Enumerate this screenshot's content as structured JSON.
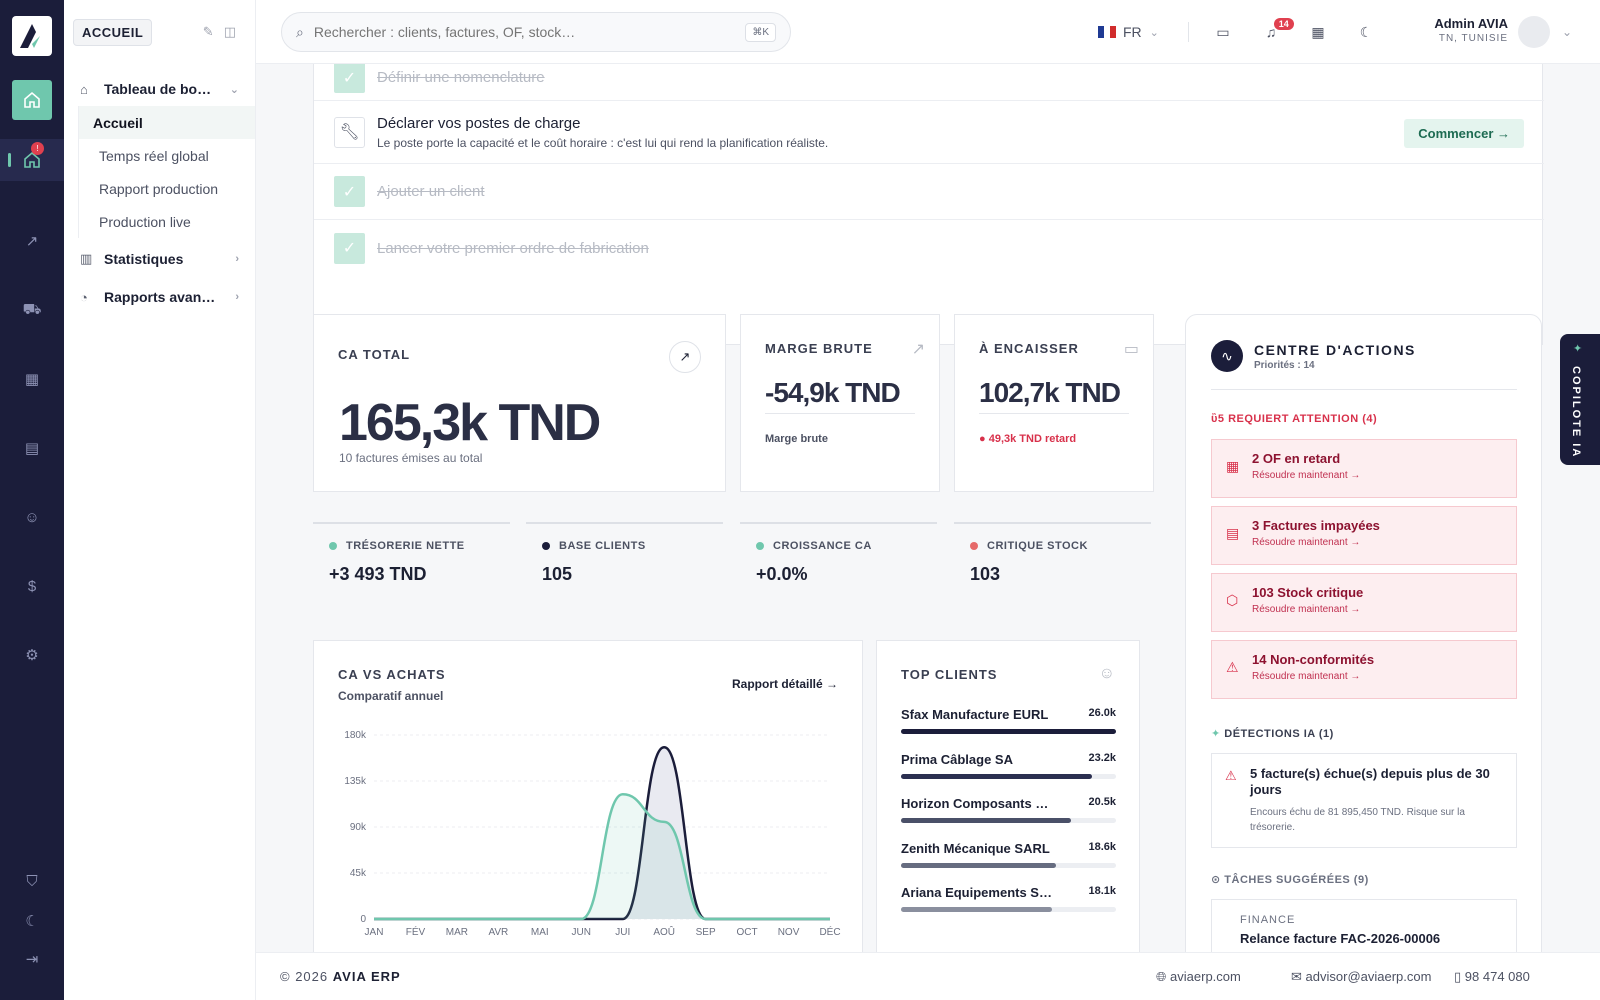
{
  "rail": {
    "items": [
      "home-icon",
      "home-icon",
      "trend-icon",
      "cart-icon",
      "factory-icon",
      "warehouse-icon",
      "users-gear-icon",
      "dollar-icon",
      "gear-icon"
    ],
    "notif_count": "!"
  },
  "sidebar": {
    "badge": "ACCUEIL",
    "groups": [
      {
        "label": "Tableau de bo…",
        "items": [
          "Accueil",
          "Temps réel global",
          "Rapport production",
          "Production live"
        ]
      },
      {
        "label": "Statistiques"
      },
      {
        "label": "Rapports avan…"
      }
    ]
  },
  "header": {
    "search_placeholder": "Rechercher : clients, factures, OF, stock…",
    "shortcut": "⌘K",
    "lang": "FR",
    "notif_count": "14",
    "user_name": "Admin AVIA",
    "user_location": "TN, TUNISIE"
  },
  "steps": [
    {
      "label": "Définir une nomenclature",
      "done": true
    },
    {
      "label": "Déclarer vos postes de charge",
      "desc": "Le poste porte la capacité et le coût horaire : c'est lui qui rend la planification réaliste.",
      "action": "Commencer",
      "done": false
    },
    {
      "label": "Ajouter un client",
      "done": true
    },
    {
      "label": "Lancer votre premier ordre de fabrication",
      "done": true
    }
  ],
  "kpis": {
    "ca": {
      "label": "CA TOTAL",
      "value": "165,3k TND",
      "sub": "10 factures émises au total"
    },
    "marge": {
      "label": "MARGE BRUTE",
      "value": "-54,9k TND",
      "sub": "Marge brute"
    },
    "encaisser": {
      "label": "À ENCAISSER",
      "value": "102,7k TND",
      "sub": "49,3k TND retard"
    }
  },
  "minis": [
    {
      "label": "TRÉSORERIE NETTE",
      "value": "+3 493 TND",
      "color": "#6fc7ad"
    },
    {
      "label": "BASE CLIENTS",
      "value": "105",
      "color": "#1b1d3a"
    },
    {
      "label": "CROISSANCE CA",
      "value": "+0.0%",
      "color": "#6fc7ad"
    },
    {
      "label": "CRITIQUE STOCK",
      "value": "103",
      "color": "#e66a6a"
    }
  ],
  "chart_data": {
    "type": "area",
    "title": "CA VS ACHATS",
    "subtitle": "Comparatif annuel",
    "link": "Rapport détaillé →",
    "categories": [
      "JAN",
      "FÉV",
      "MAR",
      "AVR",
      "MAI",
      "JUN",
      "JUI",
      "AOÛ",
      "SEP",
      "OCT",
      "NOV",
      "DÉC"
    ],
    "y_ticks": [
      "180k",
      "135k",
      "90k",
      "45k",
      "0"
    ],
    "ylim": [
      0,
      180000
    ],
    "series": [
      {
        "color": "#1b1d3a",
        "values": [
          0,
          0,
          0,
          0,
          0,
          0,
          0,
          168000,
          0,
          0,
          0,
          0
        ]
      },
      {
        "color": "#6fc7ad",
        "values": [
          0,
          0,
          0,
          0,
          0,
          0,
          122000,
          95000,
          0,
          0,
          0,
          0
        ]
      }
    ],
    "grid": true
  },
  "top_clients": {
    "title": "TOP CLIENTS",
    "items": [
      {
        "name": "Sfax Manufacture EURL",
        "value": "26.0k",
        "pct": 1.0,
        "color": "#1b1d3a"
      },
      {
        "name": "Prima Câblage SA",
        "value": "23.2k",
        "pct": 0.89,
        "color": "#2b2f50"
      },
      {
        "name": "Horizon Composants …",
        "value": "20.5k",
        "pct": 0.79,
        "color": "#4a5068"
      },
      {
        "name": "Zenith Mécanique SARL",
        "value": "18.6k",
        "pct": 0.72,
        "color": "#666c80"
      },
      {
        "name": "Ariana Equipements S…",
        "value": "18.1k",
        "pct": 0.7,
        "color": "#8a8f9e"
      }
    ]
  },
  "actions": {
    "title": "CENTRE D'ACTIONS",
    "subtitle": "Priorités : 14",
    "attention_title": "REQUIERT ATTENTION (4)",
    "resolve": "Résoudre maintenant →",
    "items": [
      "2 OF en retard",
      "3 Factures impayées",
      "103 Stock critique",
      "14 Non-conformités"
    ],
    "ia_title": "DÉTECTIONS IA (1)",
    "ia_item": "5 facture(s) échue(s) depuis plus de 30 jours",
    "ia_desc": "Encours échu de 81 895,450 TND. Risque sur la trésorerie.",
    "tasks_title": "TÂCHES SUGGÉRÉES (9)",
    "task_cat": "FINANCE",
    "task_label": "Relance facture FAC-2026-00006"
  },
  "copilot": "COPILOTE IA",
  "footer": {
    "copy": "© 2026",
    "brand": "AVIA ERP",
    "site": "aviaerp.com",
    "email": "advisor@aviaerp.com",
    "phone": "98 474 080"
  }
}
